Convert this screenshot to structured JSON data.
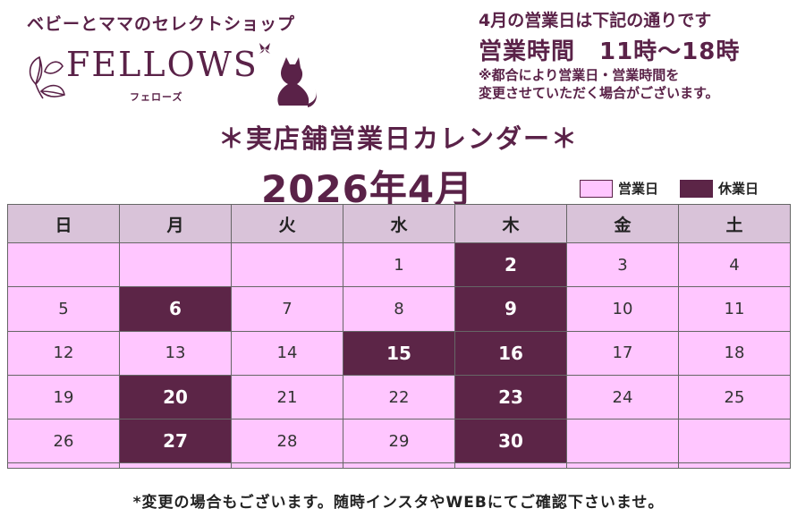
{
  "header": {
    "tagline": "ベビーとママのセレクトショップ",
    "brand": "FELLOWS",
    "brand_kana": "フェローズ"
  },
  "info": {
    "line1": "4月の営業日は下記の通りです",
    "hours": "営業時間　11時～18時",
    "note1": "※都合により営業日・営業時間を",
    "note2": "変更させていただく場合がございます。"
  },
  "calendar": {
    "title": "＊実店舗営業日カレンダー＊",
    "month": "2026年4月",
    "legend": {
      "open": "営業日",
      "closed": "休業日"
    },
    "weekdays": [
      "日",
      "月",
      "火",
      "水",
      "木",
      "金",
      "土"
    ],
    "weeks": [
      [
        null,
        null,
        null,
        "1",
        "2",
        "3",
        "4"
      ],
      [
        "5",
        "6",
        "7",
        "8",
        "9",
        "10",
        "11"
      ],
      [
        "12",
        "13",
        "14",
        "15",
        "16",
        "17",
        "18"
      ],
      [
        "19",
        "20",
        "21",
        "22",
        "23",
        "24",
        "25"
      ],
      [
        "26",
        "27",
        "28",
        "29",
        "30",
        null,
        null
      ],
      [
        null,
        null,
        null,
        null,
        null,
        null,
        null
      ]
    ],
    "closed_days": [
      "2",
      "6",
      "9",
      "15",
      "16",
      "20",
      "23",
      "27",
      "30"
    ],
    "colors": {
      "open": "#ffc6ff",
      "closed": "#5c2547",
      "header": "#d9c3d9"
    }
  },
  "footer": "*変更の場合もございます。随時インスタやWEBにてご確認下さいませ。"
}
